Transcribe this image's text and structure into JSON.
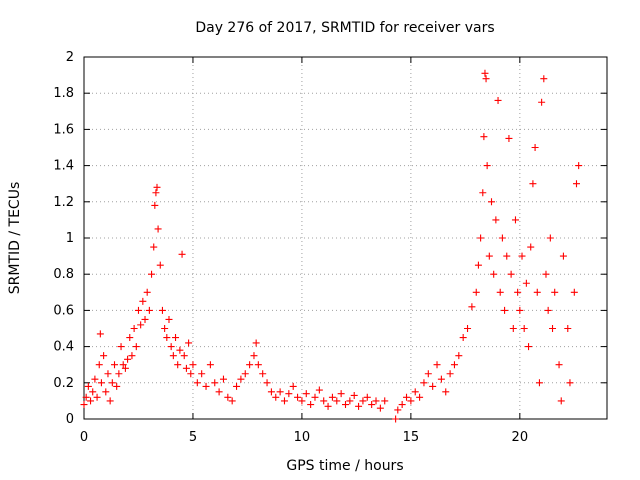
{
  "chart_data": {
    "type": "scatter",
    "title": "Day 276 of 2017, SRMTID for receiver vars",
    "xlabel": "GPS time / hours",
    "ylabel": "SRMTID / TECUs",
    "xlim": [
      0,
      24
    ],
    "ylim": [
      0,
      2
    ],
    "grid": true,
    "x_ticks": [
      0,
      5,
      10,
      15,
      20
    ],
    "y_ticks": [
      0,
      0.2,
      0.4,
      0.6,
      0.8,
      1,
      1.2,
      1.4,
      1.6,
      1.8,
      2
    ],
    "x_tick_labels": [
      "0",
      "5",
      "10",
      "15",
      "20"
    ],
    "y_tick_labels": [
      "0",
      "0.2",
      "0.4",
      "0.6",
      "0.8",
      "1",
      "1.2",
      "1.4",
      "1.6",
      "1.8",
      "2"
    ],
    "marker": "plus",
    "color": "#ff0000",
    "series": [
      {
        "name": "SRMTID",
        "points": [
          [
            0.0,
            0.08
          ],
          [
            0.1,
            0.12
          ],
          [
            0.2,
            0.18
          ],
          [
            0.3,
            0.1
          ],
          [
            0.4,
            0.15
          ],
          [
            0.5,
            0.22
          ],
          [
            0.6,
            0.12
          ],
          [
            0.7,
            0.3
          ],
          [
            0.75,
            0.47
          ],
          [
            0.8,
            0.2
          ],
          [
            0.9,
            0.35
          ],
          [
            1.0,
            0.15
          ],
          [
            1.1,
            0.25
          ],
          [
            1.2,
            0.1
          ],
          [
            1.3,
            0.2
          ],
          [
            1.4,
            0.3
          ],
          [
            1.5,
            0.18
          ],
          [
            1.6,
            0.25
          ],
          [
            1.7,
            0.4
          ],
          [
            1.8,
            0.3
          ],
          [
            1.9,
            0.28
          ],
          [
            2.0,
            0.33
          ],
          [
            2.1,
            0.45
          ],
          [
            2.2,
            0.35
          ],
          [
            2.3,
            0.5
          ],
          [
            2.4,
            0.4
          ],
          [
            2.5,
            0.6
          ],
          [
            2.6,
            0.52
          ],
          [
            2.7,
            0.65
          ],
          [
            2.8,
            0.55
          ],
          [
            2.9,
            0.7
          ],
          [
            3.0,
            0.6
          ],
          [
            3.1,
            0.8
          ],
          [
            3.2,
            0.95
          ],
          [
            3.25,
            1.18
          ],
          [
            3.3,
            1.25
          ],
          [
            3.35,
            1.28
          ],
          [
            3.4,
            1.05
          ],
          [
            3.5,
            0.85
          ],
          [
            3.6,
            0.6
          ],
          [
            3.7,
            0.5
          ],
          [
            3.8,
            0.45
          ],
          [
            3.9,
            0.55
          ],
          [
            4.0,
            0.4
          ],
          [
            4.1,
            0.35
          ],
          [
            4.2,
            0.45
          ],
          [
            4.3,
            0.3
          ],
          [
            4.4,
            0.38
          ],
          [
            4.5,
            0.91
          ],
          [
            4.6,
            0.35
          ],
          [
            4.7,
            0.28
          ],
          [
            4.8,
            0.42
          ],
          [
            4.9,
            0.25
          ],
          [
            5.0,
            0.3
          ],
          [
            5.2,
            0.2
          ],
          [
            5.4,
            0.25
          ],
          [
            5.6,
            0.18
          ],
          [
            5.8,
            0.3
          ],
          [
            6.0,
            0.2
          ],
          [
            6.2,
            0.15
          ],
          [
            6.4,
            0.22
          ],
          [
            6.6,
            0.12
          ],
          [
            6.8,
            0.1
          ],
          [
            7.0,
            0.18
          ],
          [
            7.2,
            0.22
          ],
          [
            7.4,
            0.25
          ],
          [
            7.6,
            0.3
          ],
          [
            7.8,
            0.35
          ],
          [
            7.9,
            0.42
          ],
          [
            8.0,
            0.3
          ],
          [
            8.2,
            0.25
          ],
          [
            8.4,
            0.2
          ],
          [
            8.6,
            0.15
          ],
          [
            8.8,
            0.12
          ],
          [
            9.0,
            0.15
          ],
          [
            9.2,
            0.1
          ],
          [
            9.4,
            0.14
          ],
          [
            9.6,
            0.18
          ],
          [
            9.8,
            0.12
          ],
          [
            10.0,
            0.1
          ],
          [
            10.2,
            0.14
          ],
          [
            10.4,
            0.08
          ],
          [
            10.6,
            0.12
          ],
          [
            10.8,
            0.16
          ],
          [
            11.0,
            0.1
          ],
          [
            11.2,
            0.07
          ],
          [
            11.4,
            0.12
          ],
          [
            11.6,
            0.1
          ],
          [
            11.8,
            0.14
          ],
          [
            12.0,
            0.08
          ],
          [
            12.2,
            0.1
          ],
          [
            12.4,
            0.13
          ],
          [
            12.6,
            0.07
          ],
          [
            12.8,
            0.1
          ],
          [
            13.0,
            0.12
          ],
          [
            13.2,
            0.08
          ],
          [
            13.4,
            0.1
          ],
          [
            13.6,
            0.06
          ],
          [
            13.8,
            0.1
          ],
          [
            14.3,
            0.0
          ],
          [
            14.4,
            0.05
          ],
          [
            14.6,
            0.08
          ],
          [
            14.8,
            0.12
          ],
          [
            15.0,
            0.1
          ],
          [
            15.2,
            0.15
          ],
          [
            15.4,
            0.12
          ],
          [
            15.6,
            0.2
          ],
          [
            15.8,
            0.25
          ],
          [
            16.0,
            0.18
          ],
          [
            16.2,
            0.3
          ],
          [
            16.4,
            0.22
          ],
          [
            16.6,
            0.15
          ],
          [
            16.8,
            0.25
          ],
          [
            17.0,
            0.3
          ],
          [
            17.2,
            0.35
          ],
          [
            17.4,
            0.45
          ],
          [
            17.6,
            0.5
          ],
          [
            17.8,
            0.62
          ],
          [
            18.0,
            0.7
          ],
          [
            18.1,
            0.85
          ],
          [
            18.2,
            1.0
          ],
          [
            18.3,
            1.25
          ],
          [
            18.35,
            1.56
          ],
          [
            18.4,
            1.91
          ],
          [
            18.45,
            1.88
          ],
          [
            18.5,
            1.4
          ],
          [
            18.6,
            0.9
          ],
          [
            18.7,
            1.2
          ],
          [
            18.8,
            0.8
          ],
          [
            18.9,
            1.1
          ],
          [
            19.0,
            1.76
          ],
          [
            19.1,
            0.7
          ],
          [
            19.2,
            1.0
          ],
          [
            19.3,
            0.6
          ],
          [
            19.4,
            0.9
          ],
          [
            19.5,
            1.55
          ],
          [
            19.6,
            0.8
          ],
          [
            19.7,
            0.5
          ],
          [
            19.8,
            1.1
          ],
          [
            19.9,
            0.7
          ],
          [
            20.0,
            0.6
          ],
          [
            20.1,
            0.9
          ],
          [
            20.2,
            0.5
          ],
          [
            20.3,
            0.75
          ],
          [
            20.4,
            0.4
          ],
          [
            20.5,
            0.95
          ],
          [
            20.6,
            1.3
          ],
          [
            20.7,
            1.5
          ],
          [
            20.8,
            0.7
          ],
          [
            20.9,
            0.2
          ],
          [
            21.0,
            1.75
          ],
          [
            21.1,
            1.88
          ],
          [
            21.2,
            0.8
          ],
          [
            21.3,
            0.6
          ],
          [
            21.4,
            1.0
          ],
          [
            21.5,
            0.5
          ],
          [
            21.6,
            0.7
          ],
          [
            21.8,
            0.3
          ],
          [
            21.9,
            0.1
          ],
          [
            22.0,
            0.9
          ],
          [
            22.2,
            0.5
          ],
          [
            22.3,
            0.2
          ],
          [
            22.5,
            0.7
          ],
          [
            22.6,
            1.3
          ],
          [
            22.7,
            1.4
          ]
        ]
      }
    ]
  }
}
